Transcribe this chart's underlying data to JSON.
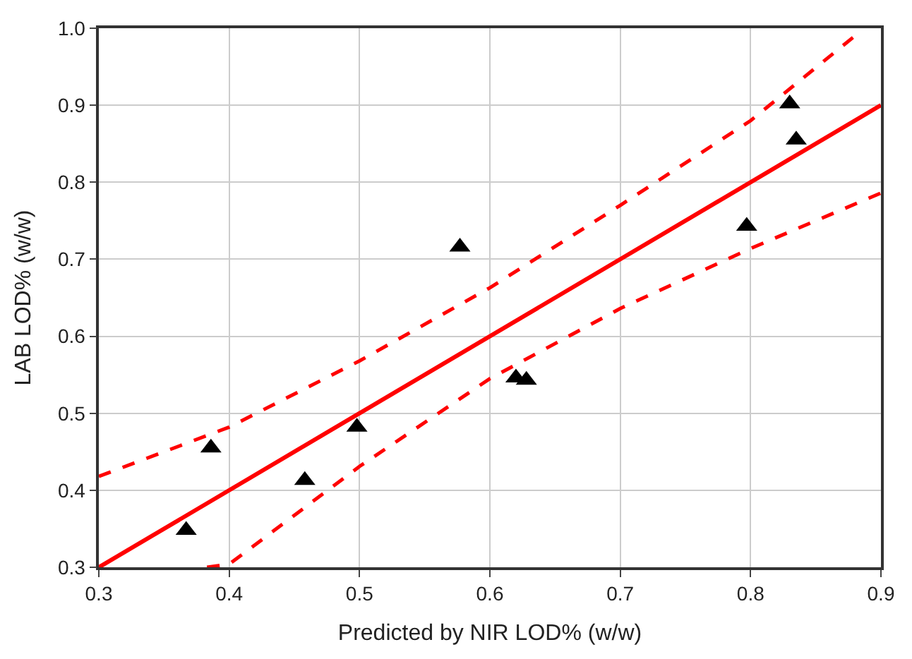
{
  "chart_data": {
    "type": "scatter",
    "xlabel": "Predicted by NIR LOD% (w/w)",
    "ylabel": "LAB LOD% (w/w)",
    "xlim": [
      0.3,
      0.9
    ],
    "ylim": [
      0.3,
      1.0
    ],
    "xticks": [
      0.3,
      0.4,
      0.5,
      0.6,
      0.7,
      0.8,
      0.9
    ],
    "yticks": [
      0.3,
      0.4,
      0.5,
      0.6,
      0.7,
      0.8,
      0.9,
      {
        "value": 1.0,
        "label": "1.0"
      }
    ],
    "grid": true,
    "series": [
      {
        "marker": "triangle",
        "color": "#000000",
        "x": [
          0.367,
          0.386,
          0.458,
          0.498,
          0.577,
          0.62,
          0.628,
          0.797,
          0.83,
          0.835
        ],
        "values": [
          0.348,
          0.455,
          0.413,
          0.482,
          0.716,
          0.546,
          0.543,
          0.743,
          0.902,
          0.855
        ]
      },
      {
        "type": "line",
        "marker": "none",
        "line_style": "solid",
        "color": "#ff0000",
        "x": [
          0.3,
          0.9
        ],
        "values": [
          0.3,
          0.9
        ]
      },
      {
        "type": "line",
        "marker": "none",
        "line_style": "dashed",
        "color": "#ff0000",
        "x": [
          0.3,
          0.4,
          0.5,
          0.6,
          0.7,
          0.8,
          0.88
        ],
        "values": [
          0.418,
          0.482,
          0.568,
          0.663,
          0.77,
          0.88,
          0.99
        ]
      },
      {
        "type": "line",
        "marker": "none",
        "line_style": "dashed",
        "color": "#ff0000",
        "x": [
          0.383,
          0.4,
          0.5,
          0.6,
          0.7,
          0.8,
          0.9
        ],
        "values": [
          0.3,
          0.304,
          0.431,
          0.545,
          0.636,
          0.714,
          0.786
        ]
      }
    ]
  }
}
